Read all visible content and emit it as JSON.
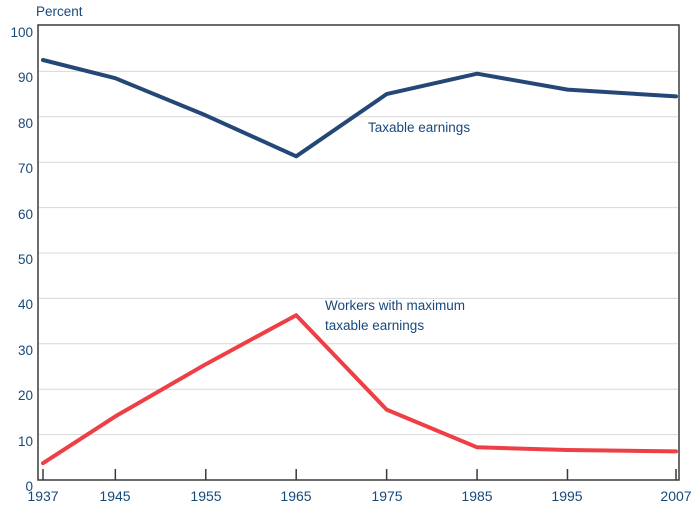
{
  "chart_data": {
    "type": "line",
    "title": "",
    "ylabel": "Percent",
    "xlabel": "",
    "xlim": [
      1937,
      2007
    ],
    "ylim": [
      0,
      100
    ],
    "grid": "horizontal-light-gray",
    "legend_position": "inline-annotations",
    "x": [
      1937,
      1945,
      1955,
      1965,
      1975,
      1985,
      1995,
      2007
    ],
    "x_tick_labels": [
      "1937",
      "1945",
      "1955",
      "1965",
      "1975",
      "1985",
      "1995",
      "2007"
    ],
    "y_ticks": [
      0,
      10,
      20,
      30,
      40,
      50,
      60,
      70,
      80,
      90,
      100
    ],
    "series": [
      {
        "name": "Taxable earnings",
        "color": "#254778",
        "values": [
          92.5,
          88.5,
          80.3,
          71.3,
          85.0,
          89.5,
          86.0,
          84.5
        ]
      },
      {
        "name": "Workers with maximum taxable earnings",
        "color": "#ED3F45",
        "values": [
          3.7,
          14.0,
          25.5,
          36.3,
          15.5,
          7.2,
          6.6,
          6.3
        ]
      }
    ],
    "annotations": [
      {
        "text": "Taxable earnings",
        "series": "taxable-earnings"
      },
      {
        "text": "Workers with maximum\ntaxable earnings",
        "series": "workers-max"
      }
    ],
    "colors": {
      "taxable_line": "#254778",
      "workers_line": "#ED3F45",
      "label_text": "#17497A",
      "axis_border": "#3A3A3A",
      "gridline": "#D8D8D8",
      "background": "#FFFFFF"
    }
  }
}
